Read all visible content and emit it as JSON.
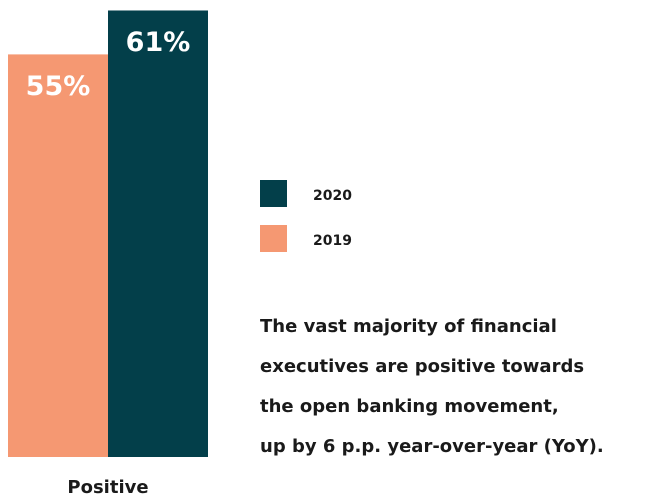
{
  "chart_data": {
    "type": "bar",
    "categories": [
      "Positive"
    ],
    "series": [
      {
        "name": "2020",
        "color": "#033f4a",
        "values": [
          61
        ],
        "value_labels": [
          "61%"
        ]
      },
      {
        "name": "2019",
        "color": "#f59872",
        "values": [
          55
        ],
        "value_labels": [
          "55%"
        ]
      }
    ],
    "annotation": [
      "The vast majority of financial",
      "executives are positive towards",
      "the open banking movement,",
      "up by 6 p.p. year-over-year (YoY)."
    ]
  }
}
